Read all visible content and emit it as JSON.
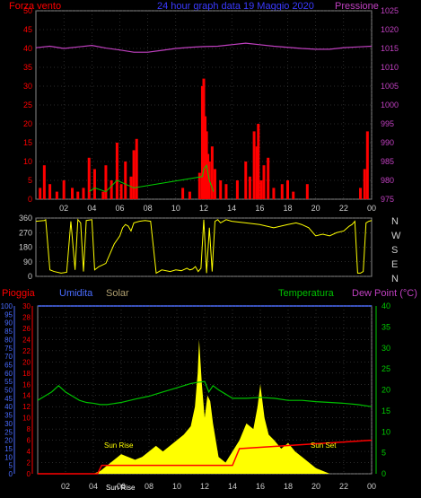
{
  "header": {
    "left_label": "Forza vento",
    "center_label": "24 hour graph data   19 Maggio 2020",
    "right_label": "Pressione"
  },
  "colors": {
    "wind": "#ff0000",
    "gust": "#00cc00",
    "pressure": "#c040c0",
    "direction": "#ffff00",
    "humidity_axis": "#4a6cff",
    "solar_label": "#b0a070",
    "temperature": "#00c000",
    "dewpoint_axis": "#00cc00",
    "rain": "#ff0000",
    "solar_fill": "#ffff00",
    "header_center": "#3a3aff",
    "grid": "#555555",
    "axis_text": "#cccccc"
  },
  "chart_data": [
    {
      "type": "bar",
      "name_hint": "wind",
      "ylim_left": [
        0,
        50
      ],
      "yticks_left": [
        "0",
        "5",
        "10",
        "15",
        "20",
        "25",
        "30",
        "35",
        "40",
        "45",
        "50"
      ],
      "ylim_right": [
        975,
        1025
      ],
      "yticks_right": [
        "975",
        "980",
        "985",
        "990",
        "995",
        "1000",
        "1005",
        "1010",
        "1015",
        "1020",
        "1025"
      ],
      "xticks": [
        "02",
        "04",
        "06",
        "08",
        "10",
        "12",
        "14",
        "16",
        "18",
        "20",
        "22",
        "00"
      ],
      "wind_x": [
        0.3,
        0.6,
        1.0,
        1.5,
        2.0,
        2.6,
        3.0,
        3.4,
        3.8,
        4.2,
        4.8,
        5.0,
        5.4,
        5.8,
        6.1,
        6.4,
        6.8,
        7.0,
        7.2,
        10.5,
        11.0,
        11.7,
        11.9,
        12.0,
        12.1,
        12.2,
        12.3,
        12.4,
        12.6,
        12.8,
        13.2,
        13.6,
        14.4,
        15.0,
        15.3,
        15.6,
        15.8,
        15.9,
        16.1,
        16.3,
        16.6,
        17.0,
        17.6,
        18.0,
        18.4,
        19.4,
        23.2,
        23.5,
        23.7
      ],
      "wind_y": [
        3,
        9,
        4,
        2,
        5,
        3,
        2,
        3,
        11,
        8,
        2,
        9,
        5,
        15,
        4,
        10,
        6,
        13,
        16,
        3,
        2,
        7,
        30,
        32,
        22,
        18,
        12,
        10,
        14,
        8,
        5,
        4,
        5,
        10,
        6,
        18,
        14,
        20,
        5,
        9,
        11,
        3,
        4,
        5,
        2,
        4,
        3,
        8,
        18
      ],
      "gust_x": [
        3.8,
        4.2,
        5.0,
        5.8,
        6.4,
        7.0,
        11.9,
        12.0,
        12.2,
        12.4,
        12.7
      ],
      "gust_y": [
        2,
        3,
        2,
        5,
        4,
        3,
        6,
        8,
        9,
        5,
        2
      ],
      "pressure_y": [
        1015.2,
        1015.6,
        1015.0,
        1015.4,
        1015.8,
        1015.1,
        1014.6,
        1014.0,
        1014.0,
        1014.5,
        1015.0,
        1015.3,
        1015.5,
        1015.6,
        1016.0,
        1016.4,
        1016.0,
        1015.6,
        1015.3,
        1015.0,
        1014.8,
        1014.8,
        1015.2,
        1015.4,
        1015.6
      ]
    },
    {
      "type": "line",
      "name_hint": "direction",
      "ylim": [
        0,
        360
      ],
      "yticks": [
        "0",
        "90",
        "180",
        "270",
        "360"
      ],
      "right_labels": [
        "N",
        "W",
        "S",
        "E",
        "N"
      ],
      "x": [
        0,
        0.6,
        0.7,
        1.0,
        1.3,
        1.8,
        2.2,
        2.5,
        2.8,
        3.0,
        3.2,
        3.4,
        3.6,
        4.0,
        4.2,
        4.5,
        5.0,
        5.2,
        5.6,
        6.0,
        6.2,
        6.4,
        6.6,
        6.8,
        7.0,
        7.4,
        7.8,
        8.2,
        8.6,
        9.0,
        9.6,
        10.0,
        10.4,
        10.8,
        11.0,
        11.2,
        11.4,
        11.6,
        11.8,
        12.0,
        12.2,
        12.4,
        12.6,
        12.8,
        13.0,
        13.2,
        13.4,
        13.6,
        14.0,
        15.0,
        16.0,
        17.0,
        18.0,
        18.6,
        19.0,
        19.5,
        20.0,
        20.5,
        21.0,
        21.5,
        22.0,
        22.4,
        22.6,
        22.8,
        23.0,
        23.2,
        23.4,
        23.6,
        23.8,
        24.0
      ],
      "y": [
        340,
        345,
        350,
        40,
        30,
        20,
        25,
        340,
        40,
        350,
        330,
        30,
        345,
        350,
        40,
        60,
        80,
        120,
        200,
        250,
        300,
        320,
        310,
        280,
        330,
        340,
        345,
        340,
        20,
        40,
        30,
        40,
        35,
        50,
        40,
        45,
        60,
        30,
        50,
        350,
        20,
        300,
        30,
        340,
        350,
        330,
        340,
        350,
        340,
        330,
        320,
        300,
        320,
        330,
        320,
        300,
        250,
        260,
        250,
        270,
        280,
        310,
        320,
        340,
        20,
        20,
        30,
        330,
        340,
        345
      ]
    },
    {
      "type": "line",
      "name_hint": "temperature-humidity-rain-solar",
      "ylim_left": [
        0,
        100
      ],
      "yticks_left": [
        "0",
        "5",
        "10",
        "15",
        "20",
        "25",
        "30",
        "35",
        "40",
        "45",
        "50",
        "55",
        "60",
        "65",
        "70",
        "75",
        "80",
        "85",
        "90",
        "95",
        "100"
      ],
      "yticks_left2": [
        "0",
        "2",
        "4",
        "6",
        "8",
        "10",
        "12",
        "14",
        "16",
        "18",
        "20",
        "22",
        "24",
        "26",
        "28",
        "30"
      ],
      "ylim_right": [
        0,
        40
      ],
      "yticks_right": [
        "0",
        "5",
        "10",
        "15",
        "20",
        "25",
        "30",
        "35",
        "40"
      ],
      "xticks": [
        "02",
        "04",
        "06",
        "08",
        "10",
        "12",
        "14",
        "16",
        "18",
        "20",
        "22",
        "00"
      ],
      "temperature_x": [
        0,
        0.5,
        1.0,
        1.5,
        2.0,
        2.5,
        3.0,
        3.5,
        4.0,
        4.5,
        5.0,
        6.0,
        7.0,
        8.0,
        9.0,
        10.0,
        11.0,
        11.5,
        12.0,
        12.3,
        12.6,
        13.0,
        13.5,
        14.0,
        15.0,
        16.0,
        17.0,
        18.0,
        19.0,
        20.0,
        21.0,
        22.0,
        23.0,
        24.0
      ],
      "temperature_y": [
        17.5,
        18.5,
        19.5,
        21.0,
        19.5,
        18.5,
        17.5,
        17.0,
        16.8,
        16.5,
        16.5,
        17.0,
        17.8,
        18.5,
        19.5,
        20.5,
        21.5,
        21.8,
        22.0,
        19.5,
        21.0,
        20.0,
        19.0,
        18.0,
        18.0,
        18.2,
        18.0,
        17.5,
        17.5,
        17.2,
        17.0,
        16.8,
        16.5,
        16.0
      ],
      "rain_x": [
        0,
        4.3,
        4.6,
        14.0,
        14.5,
        24.0
      ],
      "rain_y": [
        0,
        0,
        1.5,
        1.5,
        4.5,
        6.0
      ],
      "solar_x": [
        0,
        4.0,
        4.5,
        5.0,
        5.5,
        6.0,
        6.5,
        7.0,
        7.5,
        8.0,
        8.5,
        9.0,
        9.5,
        10.0,
        10.5,
        11.0,
        11.3,
        11.5,
        11.6,
        11.8,
        12.0,
        12.2,
        12.4,
        12.6,
        12.8,
        13.0,
        13.5,
        14.0,
        14.5,
        15.0,
        15.5,
        15.8,
        16.0,
        16.3,
        16.6,
        17.0,
        17.5,
        18.0,
        18.5,
        19.0,
        19.5,
        20.0,
        20.5,
        21.0
      ],
      "solar_y": [
        0,
        0,
        0.5,
        1.5,
        2.5,
        3.5,
        3.0,
        2.5,
        3.0,
        4.0,
        5.0,
        4.0,
        5.0,
        6.0,
        7.0,
        8.5,
        12.0,
        18.0,
        24.0,
        16.0,
        10.0,
        14.0,
        13.0,
        9.0,
        6.0,
        3.0,
        2.0,
        4.0,
        6.0,
        9.0,
        8.0,
        12.0,
        16.0,
        10.0,
        7.0,
        6.0,
        4.5,
        5.5,
        4.0,
        3.0,
        2.0,
        1.0,
        0.5,
        0
      ]
    }
  ],
  "labels": {
    "pioggia": "Pioggia",
    "umidita": "Umidita",
    "solar": "Solar",
    "temperatura": "Temperatura",
    "dewpoint": "Dew Point (°C)",
    "sun_rise": "Sun Rise",
    "sun_set": "Sun Set",
    "sun_bottom": "Sun Rise"
  }
}
